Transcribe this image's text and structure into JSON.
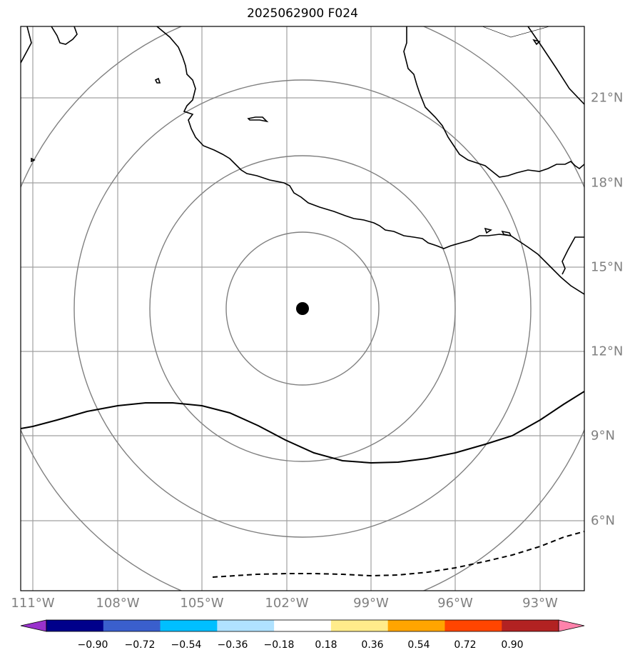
{
  "title": "2025062900 F024",
  "map": {
    "lon_labels": [
      "111°W",
      "108°W",
      "105°W",
      "102°W",
      "99°W",
      "96°W",
      "93°W"
    ],
    "lat_labels": [
      "21°N",
      "18°N",
      "15°N",
      "12°N",
      "9°N",
      "6°N"
    ],
    "center_marker": {
      "lon": -101.5,
      "lat": 13.5
    }
  },
  "colorbar": {
    "ticks": [
      "−0.90",
      "−0.72",
      "−0.54",
      "−0.36",
      "−0.18",
      "0.18",
      "0.36",
      "0.54",
      "0.72",
      "0.90"
    ],
    "colors": [
      "#9932cc",
      "#00008b",
      "#3a5fcd",
      "#00bfff",
      "#b0e2ff",
      "#ffffff",
      "#ffec8b",
      "#ffa500",
      "#ff4500",
      "#b22222",
      "#ff82ab"
    ]
  },
  "colors": {
    "grid": "#a0a0a0",
    "contour_gray": "#808080",
    "coast": "#000000"
  }
}
